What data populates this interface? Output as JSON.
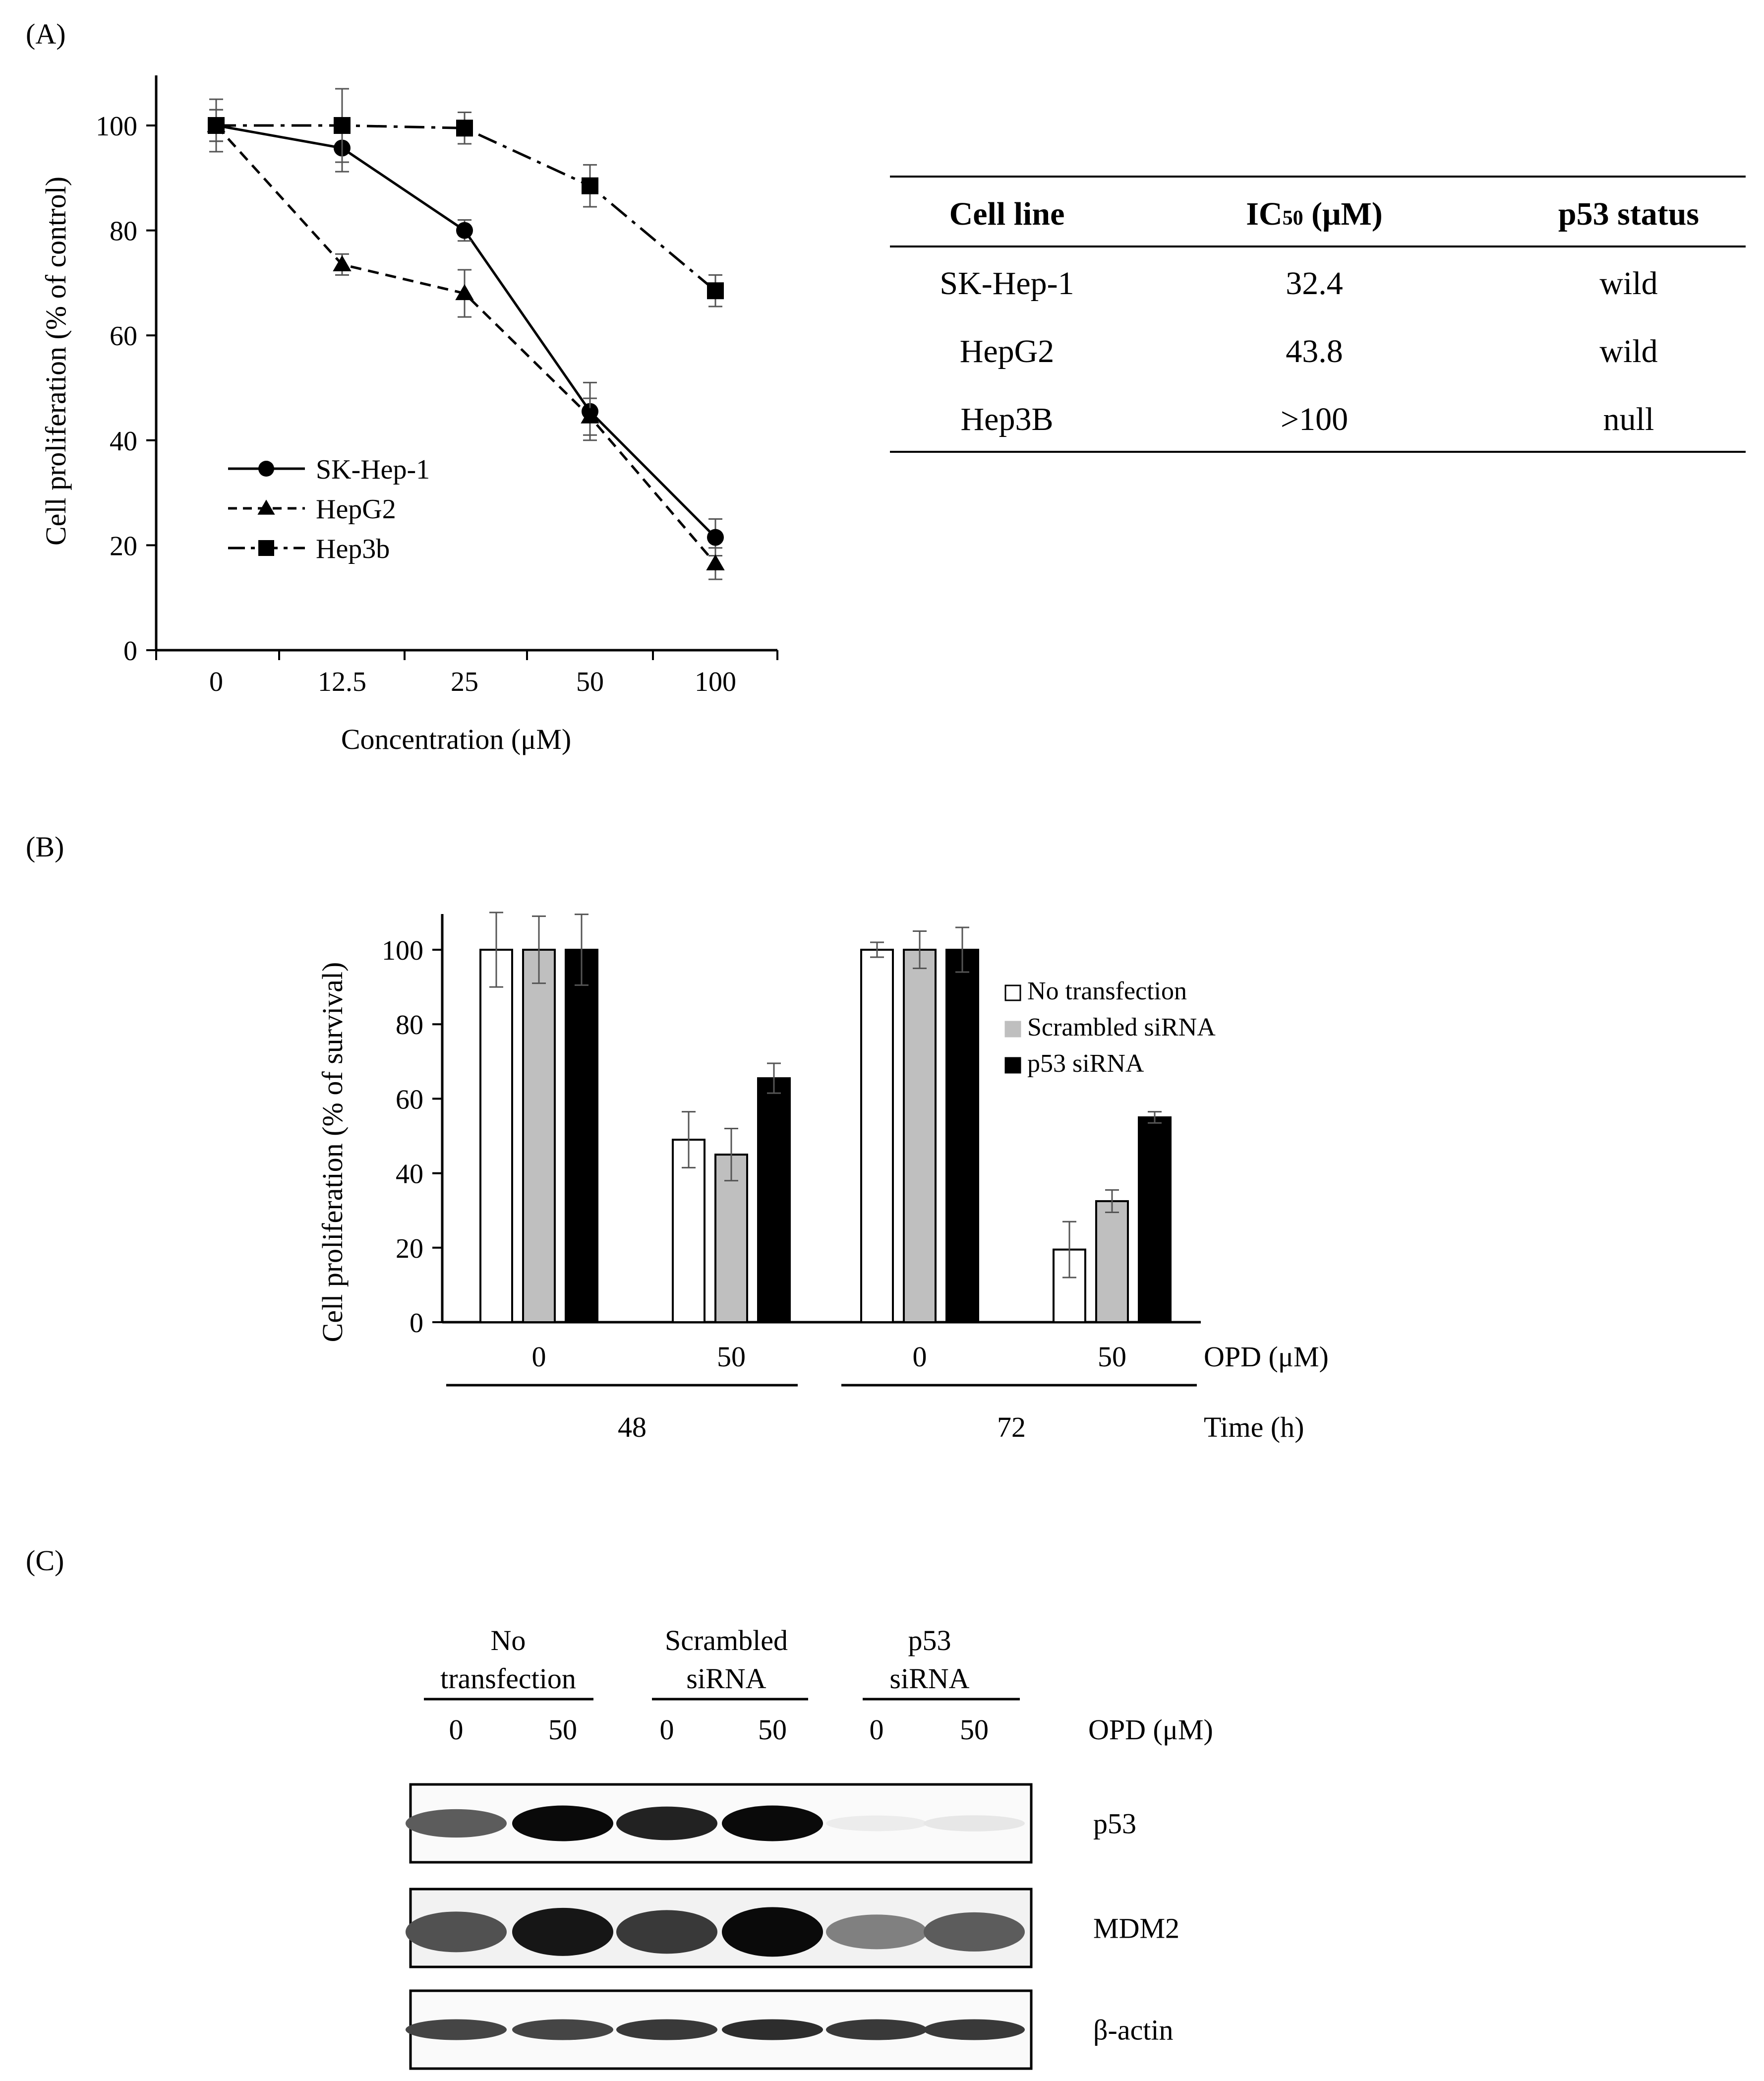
{
  "panels": {
    "a": {
      "label": "(A)",
      "table": {
        "headers": [
          "Cell line",
          "IC",
          "50",
          " (μM)",
          "p53 status"
        ],
        "rows": [
          [
            "SK-Hep-1",
            "32.4",
            "wild"
          ],
          [
            "HepG2",
            "43.8",
            "wild"
          ],
          [
            "Hep3B",
            ">100",
            "null"
          ]
        ]
      }
    },
    "b": {
      "label": "(B)"
    },
    "c": {
      "label": "(C)",
      "groups": [
        [
          "No",
          "transfection"
        ],
        [
          "Scrambled",
          "siRNA"
        ],
        [
          "p53",
          "siRNA"
        ]
      ],
      "lane_doses": [
        "0",
        "50",
        "0",
        "50",
        "0",
        "50"
      ],
      "dose_label": "OPD (μM)",
      "bands": [
        {
          "label": "p53",
          "intensity": [
            0.65,
            1.0,
            0.9,
            1.0,
            0.04,
            0.06
          ]
        },
        {
          "label": "MDM2",
          "intensity": [
            0.7,
            0.95,
            0.8,
            1.0,
            0.5,
            0.65
          ]
        },
        {
          "label": "β-actin",
          "intensity": [
            0.75,
            0.75,
            0.8,
            0.85,
            0.8,
            0.8
          ]
        }
      ]
    }
  },
  "chart_data": [
    {
      "type": "line",
      "title": "",
      "xlabel": "Concentration (μM)",
      "ylabel": "Cell proliferation (% of control)",
      "categories": [
        "0",
        "12.5",
        "25",
        "50",
        "100"
      ],
      "ylim": [
        0,
        100
      ],
      "yticks": [
        "0",
        "20",
        "40",
        "60",
        "80",
        "100"
      ],
      "legend_position": "lower-left",
      "series": [
        {
          "name": "SK-Hep-1",
          "marker": "circle",
          "dash": "solid",
          "values": [
            100,
            95.7,
            80,
            45.5,
            21.5
          ],
          "errors": [
            3,
            4.5,
            2,
            5.5,
            3.5
          ]
        },
        {
          "name": "HepG2",
          "marker": "triangle",
          "dash": "dashed",
          "values": [
            100,
            73.5,
            68,
            44.5,
            16.5
          ],
          "errors": [
            3,
            2,
            4.5,
            3.5,
            3
          ]
        },
        {
          "name": "Hep3b",
          "marker": "square",
          "dash": "dash-dot",
          "values": [
            100,
            100,
            99.5,
            88.5,
            68.5
          ],
          "errors": [
            5,
            7,
            3,
            4,
            3
          ]
        }
      ]
    },
    {
      "type": "bar",
      "title": "",
      "ylabel": "Cell proliferation (% of survival)",
      "ylim": [
        0,
        100
      ],
      "yticks": [
        "0",
        "20",
        "40",
        "60",
        "80",
        "100"
      ],
      "categories": [
        "0",
        "50",
        "0",
        "50"
      ],
      "category_axis_label": "OPD (μM)",
      "time_groups": [
        "48",
        "72"
      ],
      "time_axis_label": "Time (h)",
      "legend_position": "right",
      "series": [
        {
          "name": "No transfection",
          "color": "#ffffff",
          "values": [
            100,
            49,
            100,
            19.5
          ],
          "errors": [
            10,
            7.5,
            2,
            7.5
          ]
        },
        {
          "name": "Scrambled siRNA",
          "color": "#bfbfbf",
          "values": [
            100,
            45,
            100,
            32.5
          ],
          "errors": [
            9,
            7,
            5,
            3
          ]
        },
        {
          "name": "p53 siRNA",
          "color": "#000000",
          "values": [
            100,
            65.5,
            100,
            55
          ],
          "errors": [
            9.5,
            4,
            6,
            1.5
          ]
        }
      ]
    }
  ]
}
